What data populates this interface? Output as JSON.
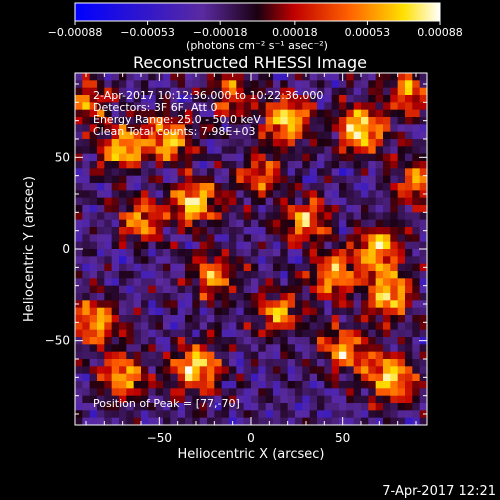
{
  "chart_data": {
    "type": "heatmap",
    "title": "Reconstructed RHESSI Image",
    "xlabel": "Heliocentric X (arcsec)",
    "ylabel": "Heliocentric Y (arcsec)",
    "xlim": [
      -96,
      96
    ],
    "ylim": [
      -96,
      96
    ],
    "x_ticks": [
      {
        "value": -50,
        "label": "−50"
      },
      {
        "value": 0,
        "label": "0"
      },
      {
        "value": 50,
        "label": "50"
      }
    ],
    "y_ticks": [
      {
        "value": -50,
        "label": "−50"
      },
      {
        "value": 0,
        "label": "0"
      },
      {
        "value": 50,
        "label": "50"
      }
    ],
    "colorbar": {
      "range": [
        -0.00088,
        0.00088
      ],
      "tick_values": [
        -0.00088,
        -0.00053,
        -0.00018,
        0.00018,
        0.00053,
        0.00088
      ],
      "tick_labels": [
        "−0.00088",
        "−0.00053",
        "−0.00018",
        "0.00018",
        "0.00053",
        "0.00088"
      ],
      "unit_label": "(photons cm⁻² s⁻¹ asec⁻²)"
    },
    "annotations": [
      "2-Apr-2017 10:12:36.000 to 10:22:36.000",
      "Detectors: 3F 6F, Att 0",
      "Energy Range: 25.0 - 50.0 keV",
      "Clean    Total counts: 7.98E+03"
    ],
    "peak_label": "Position of Peak = [77,-70]",
    "peak": [
      77,
      -70
    ],
    "hotspots": [
      {
        "x": 60,
        "y": 65,
        "intensity": 0.00088
      },
      {
        "x": 20,
        "y": 70,
        "intensity": 0.0008
      },
      {
        "x": -70,
        "y": 55,
        "intensity": 0.00075
      },
      {
        "x": -45,
        "y": 60,
        "intensity": 0.0007
      },
      {
        "x": -30,
        "y": 25,
        "intensity": 0.0008
      },
      {
        "x": -60,
        "y": 15,
        "intensity": 0.00065
      },
      {
        "x": 70,
        "y": 0,
        "intensity": 0.00075
      },
      {
        "x": 30,
        "y": 15,
        "intensity": 0.00065
      },
      {
        "x": 45,
        "y": -15,
        "intensity": 0.0007
      },
      {
        "x": 75,
        "y": -25,
        "intensity": 0.00078
      },
      {
        "x": 15,
        "y": -35,
        "intensity": 0.0006
      },
      {
        "x": -85,
        "y": -40,
        "intensity": 0.0007
      },
      {
        "x": -70,
        "y": -70,
        "intensity": 0.00068
      },
      {
        "x": -30,
        "y": -65,
        "intensity": 0.00085
      },
      {
        "x": 77,
        "y": -70,
        "intensity": 0.00088
      },
      {
        "x": 50,
        "y": -55,
        "intensity": 0.0007
      },
      {
        "x": 5,
        "y": 40,
        "intensity": 0.00055
      },
      {
        "x": -20,
        "y": -15,
        "intensity": 0.0006
      },
      {
        "x": 90,
        "y": 35,
        "intensity": 0.0006
      },
      {
        "x": -90,
        "y": 80,
        "intensity": 0.0006
      },
      {
        "x": 85,
        "y": 85,
        "intensity": 0.0006
      },
      {
        "x": -10,
        "y": 85,
        "intensity": 0.0005
      }
    ]
  },
  "timestamp": "7-Apr-2017 12:21"
}
